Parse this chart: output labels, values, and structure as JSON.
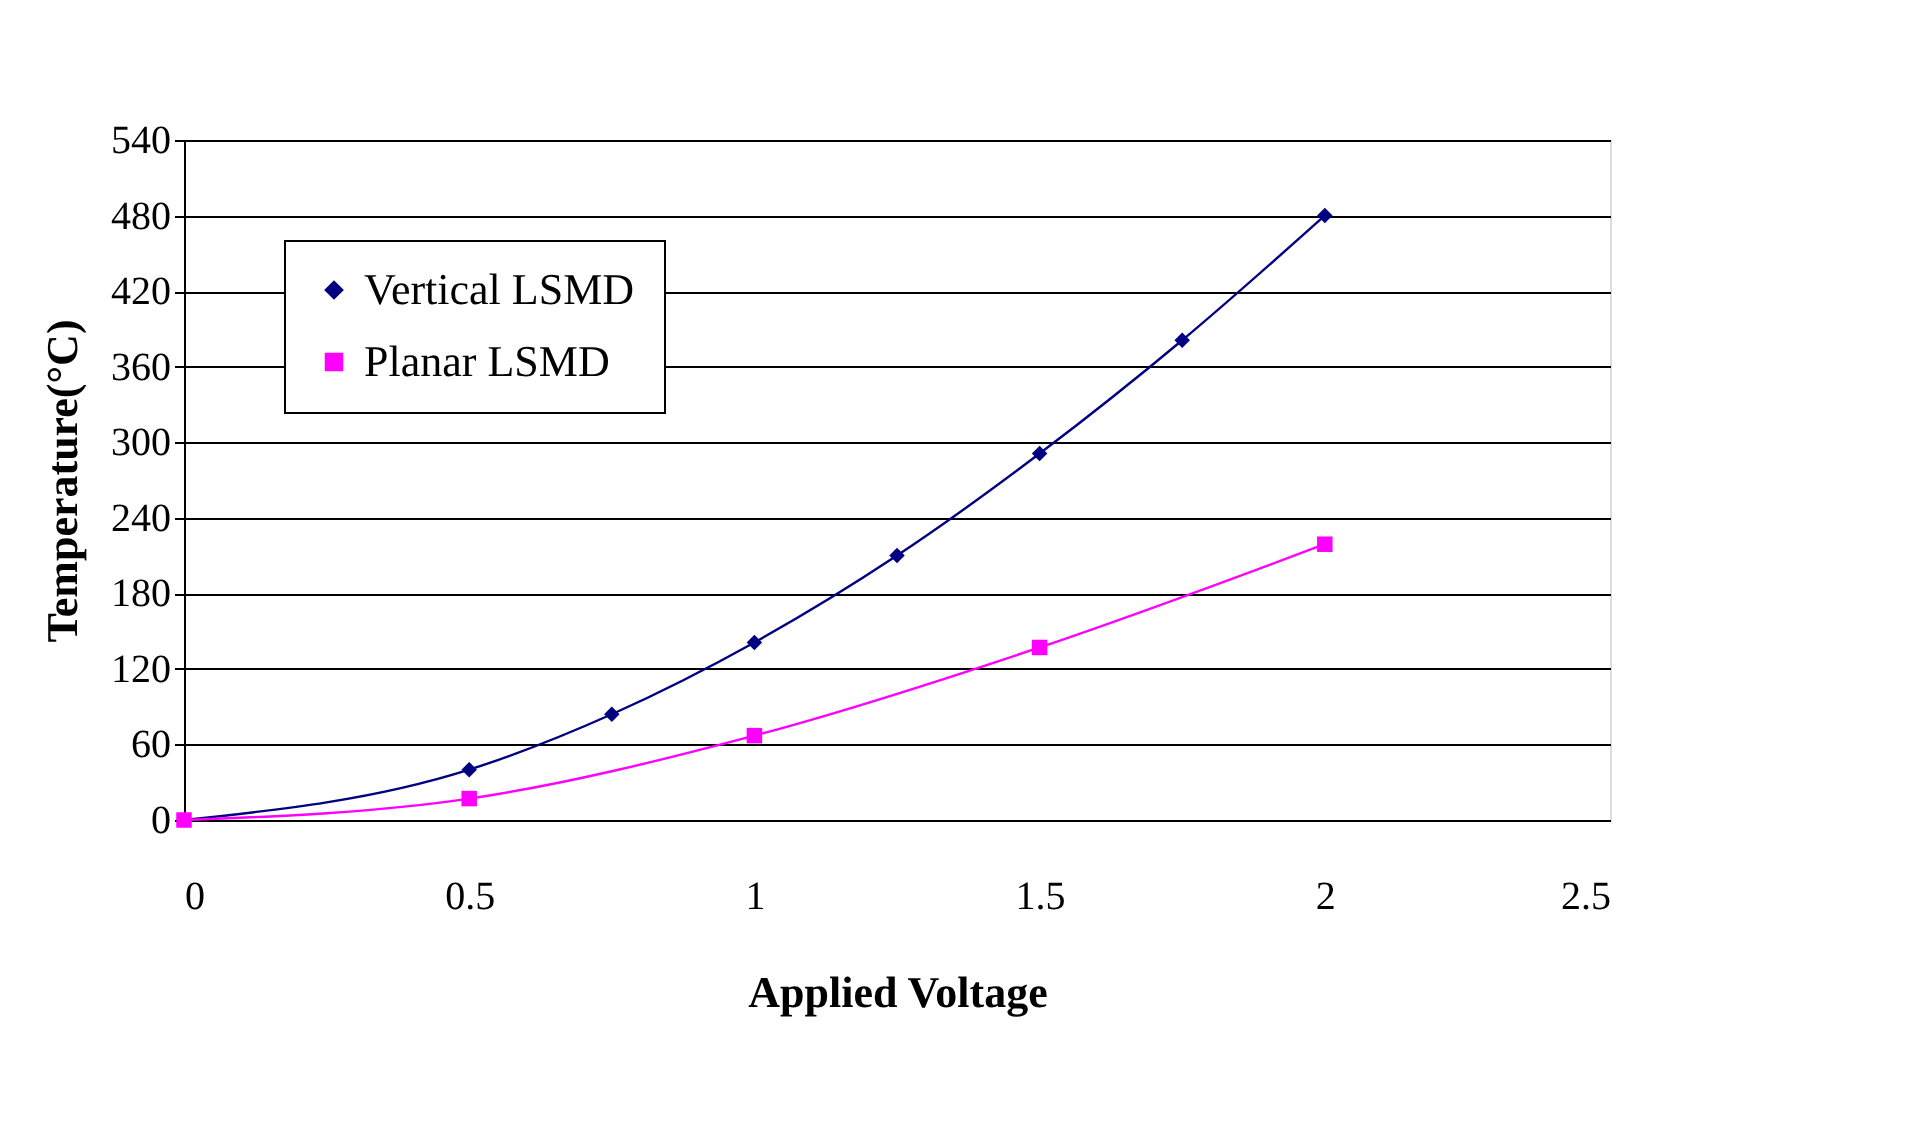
{
  "chart_data": {
    "type": "line",
    "xlabel": "Applied Voltage",
    "ylabel": "Temperature(°C)",
    "xlim": [
      0,
      2.5
    ],
    "xticks": [
      0,
      0.5,
      1,
      1.5,
      2,
      2.5
    ],
    "ylim": [
      0,
      540
    ],
    "yticks": [
      0,
      60,
      120,
      180,
      240,
      300,
      360,
      420,
      480,
      540
    ],
    "grid": "y",
    "legend": "top left",
    "line_style": "solid",
    "series": [
      {
        "name": "Vertical LSMD",
        "color": "#000080",
        "marker": "diamond",
        "x": [
          0,
          0.5,
          0.75,
          1,
          1.25,
          1.5,
          1.75,
          2
        ],
        "values": [
          0,
          40,
          84,
          141,
          210,
          291,
          381,
          480
        ]
      },
      {
        "name": "Planar LSMD",
        "color": "#ff00ff",
        "marker": "square",
        "x": [
          0,
          0.5,
          1,
          1.5,
          2
        ],
        "values": [
          0,
          17,
          67,
          137,
          219
        ]
      }
    ]
  }
}
